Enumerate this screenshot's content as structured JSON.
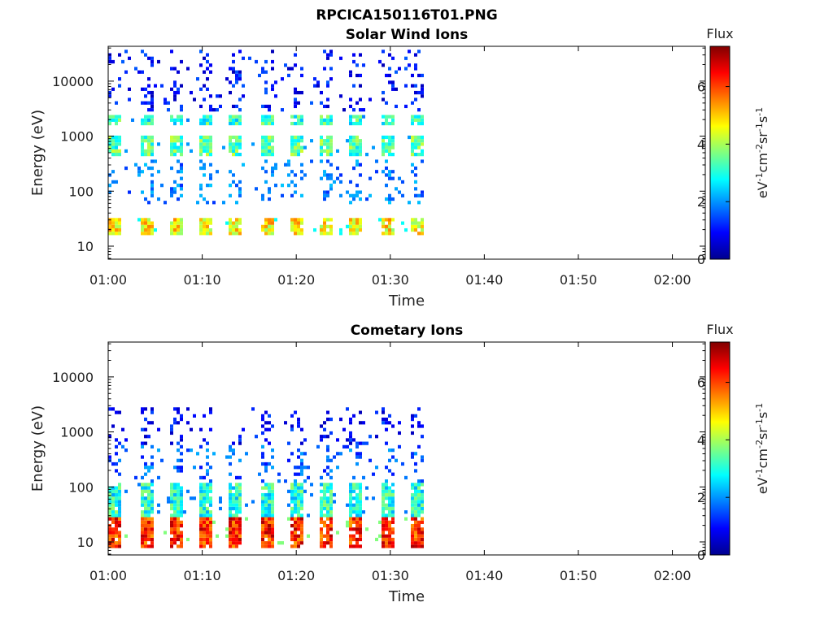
{
  "figure_title": "RPCICA150116T01.PNG",
  "colormap": "jet",
  "chart_data": [
    {
      "type": "heatmap",
      "title": "Solar Wind Ions",
      "xlabel": "Time",
      "ylabel": "Energy (eV)",
      "x_ticks": [
        "01:00",
        "01:10",
        "01:20",
        "01:30",
        "01:40",
        "01:50",
        "02:00"
      ],
      "x_range_minutes": [
        0,
        63.5
      ],
      "y_scale": "log",
      "y_ticks": [
        "10",
        "100",
        "1000",
        "10000"
      ],
      "y_range": [
        5.8,
        43000
      ],
      "colorbar": {
        "label": "Flux",
        "units": "eV-1cm-2sr-1s-1",
        "ticks": [
          "0",
          "2",
          "4",
          "6"
        ],
        "range": [
          0,
          7.4
        ]
      },
      "data_end_minute": 33.5,
      "sweep_start_minutes": [
        0.0,
        3.2,
        6.4,
        9.6,
        12.8,
        16.0,
        19.2,
        22.4,
        25.6,
        28.8,
        32.0
      ],
      "bands": [
        {
          "energy_min": 15,
          "energy_max": 32,
          "flux": 4.7,
          "note": "bright low-energy band"
        },
        {
          "energy_min": 450,
          "energy_max": 1100,
          "flux": 3.4
        },
        {
          "energy_min": 1500,
          "energy_max": 2500,
          "flux": 3.1
        },
        {
          "energy_min": 60,
          "energy_max": 400,
          "flux": 1.8,
          "sparse": true
        },
        {
          "energy_min": 3000,
          "energy_max": 40000,
          "flux": 1.0,
          "sparse": true
        }
      ]
    },
    {
      "type": "heatmap",
      "title": "Cometary Ions",
      "xlabel": "Time",
      "ylabel": "Energy (eV)",
      "x_ticks": [
        "01:00",
        "01:10",
        "01:20",
        "01:30",
        "01:40",
        "01:50",
        "02:00"
      ],
      "x_range_minutes": [
        0,
        63.5
      ],
      "y_scale": "log",
      "y_ticks": [
        "10",
        "100",
        "1000",
        "10000"
      ],
      "y_range": [
        5.8,
        43000
      ],
      "colorbar": {
        "label": "Flux",
        "units": "eV-1cm-2sr-1s-1",
        "ticks": [
          "0",
          "2",
          "4",
          "6"
        ],
        "range": [
          0,
          7.4
        ]
      },
      "data_end_minute": 33.5,
      "sweep_start_minutes": [
        0.0,
        3.2,
        6.4,
        9.6,
        12.8,
        16.0,
        19.2,
        22.4,
        25.6,
        28.8,
        32.0
      ],
      "bands": [
        {
          "energy_min": 8,
          "energy_max": 30,
          "flux": 6.2,
          "note": "intense low-energy band"
        },
        {
          "energy_min": 30,
          "energy_max": 120,
          "flux": 3.0
        },
        {
          "energy_min": 120,
          "energy_max": 600,
          "flux": 1.6,
          "sparse": true
        },
        {
          "energy_min": 600,
          "energy_max": 3000,
          "flux": 1.0,
          "sparse": true
        }
      ]
    }
  ]
}
